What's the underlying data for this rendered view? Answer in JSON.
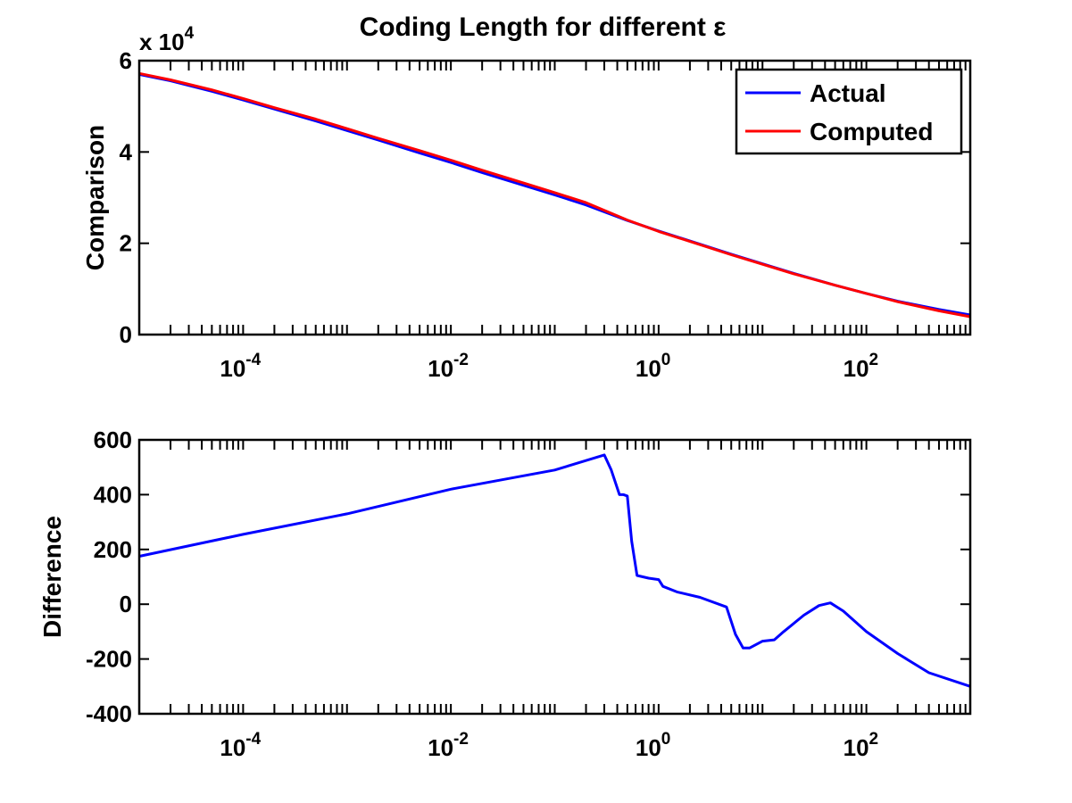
{
  "figure": {
    "title": "Coding Length for different ε"
  },
  "chart_data": [
    {
      "type": "line",
      "id": "top",
      "ylabel": "Comparison",
      "y_multiplier": "x 10",
      "y_multiplier_exp": "4",
      "xscale": "log",
      "xlim": [
        1e-05,
        1000
      ],
      "ylim": [
        0,
        60000
      ],
      "x_ticks": [
        0.0001,
        0.01,
        1,
        100
      ],
      "x_tick_labels": [
        {
          "base": "10",
          "exp": "-4"
        },
        {
          "base": "10",
          "exp": "-2"
        },
        {
          "base": "10",
          "exp": "0"
        },
        {
          "base": "10",
          "exp": "2"
        }
      ],
      "y_ticks": [
        0,
        20000,
        40000,
        60000
      ],
      "y_tick_labels": [
        "0",
        "2",
        "4",
        "6"
      ],
      "legend": {
        "placement": "top-right"
      },
      "series": [
        {
          "name": "Actual",
          "color": "#0000ff",
          "x": [
            1e-05,
            2e-05,
            5e-05,
            0.0001,
            0.0002,
            0.0005,
            0.001,
            0.002,
            0.005,
            0.01,
            0.02,
            0.05,
            0.1,
            0.2,
            0.5,
            1,
            2,
            5,
            10,
            20,
            50,
            100,
            200,
            500,
            1000
          ],
          "y": [
            57000,
            55600,
            53300,
            51400,
            49400,
            46800,
            44700,
            42600,
            39800,
            37700,
            35500,
            32700,
            30600,
            28400,
            25000,
            22700,
            20500,
            17600,
            15500,
            13400,
            10800,
            9000,
            7300,
            5500,
            4300
          ]
        },
        {
          "name": "Computed",
          "color": "#ff0000",
          "x": [
            1e-05,
            2e-05,
            5e-05,
            0.0001,
            0.0002,
            0.0005,
            0.001,
            0.002,
            0.005,
            0.01,
            0.02,
            0.05,
            0.1,
            0.2,
            0.5,
            1,
            2,
            5,
            10,
            20,
            50,
            100,
            200,
            500,
            1000
          ],
          "y": [
            57200,
            55800,
            53600,
            51700,
            49700,
            47200,
            45100,
            43000,
            40300,
            38200,
            36000,
            33200,
            31100,
            28900,
            25100,
            22600,
            20400,
            17500,
            15400,
            13300,
            10800,
            9000,
            7200,
            5200,
            3900
          ]
        }
      ]
    },
    {
      "type": "line",
      "id": "bottom",
      "ylabel": "Difference",
      "xscale": "log",
      "xlim": [
        1e-05,
        1000
      ],
      "ylim": [
        -400,
        600
      ],
      "x_ticks": [
        0.0001,
        0.01,
        1,
        100
      ],
      "x_tick_labels": [
        {
          "base": "10",
          "exp": "-4"
        },
        {
          "base": "10",
          "exp": "-2"
        },
        {
          "base": "10",
          "exp": "0"
        },
        {
          "base": "10",
          "exp": "2"
        }
      ],
      "y_ticks": [
        -400,
        -200,
        0,
        200,
        400,
        600
      ],
      "y_tick_labels": [
        "-400",
        "-200",
        "0",
        "200",
        "400",
        "600"
      ],
      "series": [
        {
          "color": "#0000ff",
          "x": [
            1e-05,
            0.0001,
            0.001,
            0.01,
            0.1,
            0.3,
            0.35,
            0.42,
            0.46,
            0.5,
            0.55,
            0.62,
            0.8,
            1.0,
            1.1,
            1.5,
            2.5,
            4.5,
            5.5,
            6.5,
            7.5,
            10,
            13,
            16,
            25,
            35,
            45,
            60,
            100,
            200,
            400,
            1000
          ],
          "y": [
            175,
            255,
            330,
            420,
            490,
            545,
            490,
            400,
            400,
            395,
            230,
            105,
            95,
            90,
            65,
            45,
            25,
            -10,
            -110,
            -160,
            -160,
            -135,
            -130,
            -100,
            -40,
            -5,
            5,
            -25,
            -100,
            -180,
            -250,
            -300
          ]
        }
      ]
    }
  ]
}
